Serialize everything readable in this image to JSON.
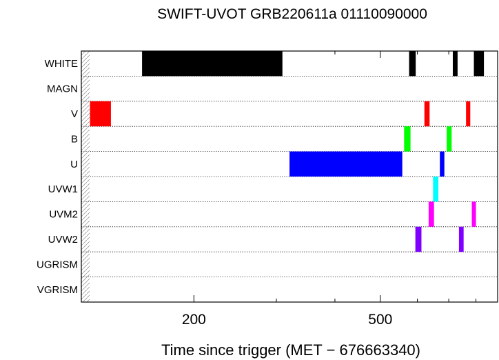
{
  "chart_data": {
    "type": "timeline",
    "title": "SWIFT-UVOT GRB220611a 01110090000",
    "xlabel": "Time since trigger (MET − 676663340)",
    "ylabel": "",
    "xscale": "log",
    "xlim": [
      115,
      890
    ],
    "xticks_major": [
      200,
      500
    ],
    "xticks_minor": [
      300,
      400,
      600,
      700,
      800
    ],
    "xtick_labels": [
      "200",
      "500"
    ],
    "rows": [
      "WHITE",
      "MAGN",
      "V",
      "B",
      "U",
      "UVW1",
      "UVM2",
      "UVW2",
      "UGRISM",
      "VGRISM"
    ],
    "colors": {
      "WHITE": "#000000",
      "V": "#ff0000",
      "B": "#00ff00",
      "U": "#0000ff",
      "UVW1": "#00ffff",
      "UVM2": "#ff00ff",
      "UVW2": "#8000ff"
    },
    "grid": true,
    "segments": [
      {
        "filter": "WHITE",
        "start": 155,
        "end": 309
      },
      {
        "filter": "WHITE",
        "start": 576,
        "end": 595
      },
      {
        "filter": "WHITE",
        "start": 714,
        "end": 731
      },
      {
        "filter": "WHITE",
        "start": 792,
        "end": 832
      },
      {
        "filter": "V",
        "start": 120,
        "end": 133
      },
      {
        "filter": "V",
        "start": 621,
        "end": 637
      },
      {
        "filter": "V",
        "start": 762,
        "end": 778
      },
      {
        "filter": "B",
        "start": 562,
        "end": 580
      },
      {
        "filter": "B",
        "start": 693,
        "end": 710
      },
      {
        "filter": "U",
        "start": 320,
        "end": 557
      },
      {
        "filter": "U",
        "start": 670,
        "end": 685
      },
      {
        "filter": "UVW1",
        "start": 648,
        "end": 665
      },
      {
        "filter": "UVM2",
        "start": 634,
        "end": 651
      },
      {
        "filter": "UVM2",
        "start": 784,
        "end": 800
      },
      {
        "filter": "UVW2",
        "start": 594,
        "end": 612
      },
      {
        "filter": "UVW2",
        "start": 736,
        "end": 753
      }
    ]
  }
}
